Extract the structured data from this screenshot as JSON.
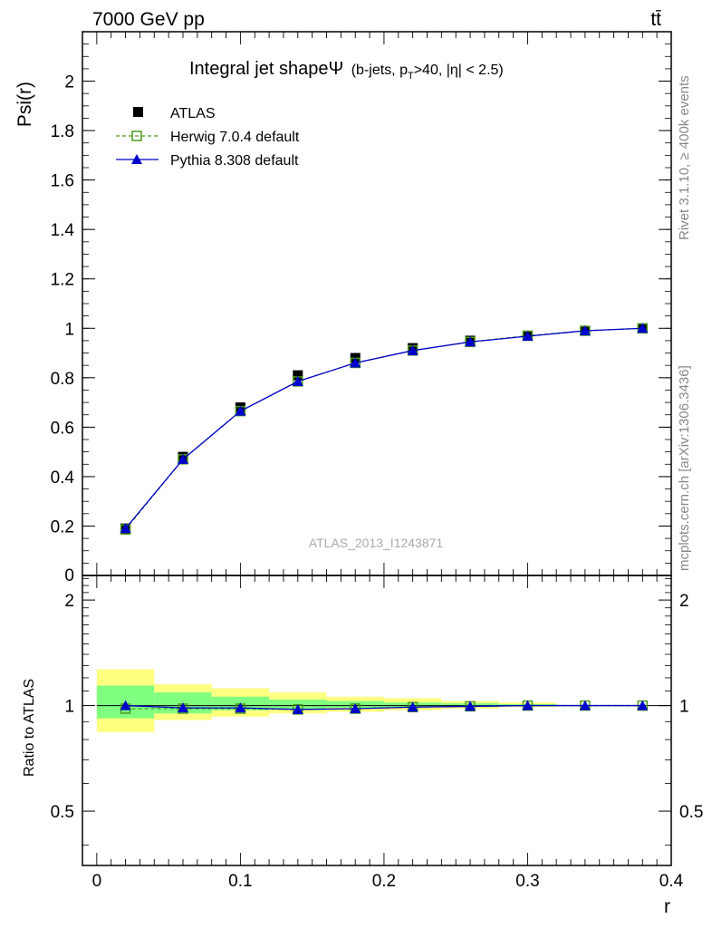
{
  "header": {
    "energy": "7000 GeV pp",
    "process": "tt̄"
  },
  "side_labels": {
    "rivet": "Rivet 3.1.10, ≥ 400k events",
    "mcplots": "mcplots.cern.ch [arXiv:1306.3436]"
  },
  "watermark": "ATLAS_2013_I1243871",
  "chart_data": [
    {
      "type": "line",
      "title_main": "Integral jet shapeΨ",
      "title_sub_a": "(b-jets, p",
      "title_sub_sub": "T",
      "title_sub_b": ">40, |η| < 2.5)",
      "ylabel": "Psi(r)",
      "xlim": [
        -0.01,
        0.4
      ],
      "ylim": [
        0,
        2.2
      ],
      "yticks": [
        0.2,
        0.4,
        0.6,
        0.8,
        1,
        1.2,
        1.4,
        1.6,
        1.8,
        2
      ],
      "ytick_labels": [
        "0.2",
        "0.4",
        "0.6",
        "0.8",
        "1",
        "1.2",
        "1.4",
        "1.6",
        "1.8",
        "2"
      ],
      "y_zero_label": "0",
      "legend_position": "top-left",
      "series": [
        {
          "name": "ATLAS",
          "marker": "filled-square",
          "color": "#000000",
          "x": [
            0.02,
            0.06,
            0.1,
            0.14,
            0.18,
            0.22,
            0.26,
            0.3,
            0.34,
            0.38
          ],
          "y": [
            0.19,
            0.48,
            0.68,
            0.81,
            0.88,
            0.92,
            0.95,
            0.97,
            0.99,
            1.0
          ]
        },
        {
          "name": "Herwig 7.0.4 default",
          "marker": "open-square",
          "line": "dashed",
          "color": "#4a9a1a",
          "x": [
            0.02,
            0.06,
            0.1,
            0.14,
            0.18,
            0.22,
            0.26,
            0.3,
            0.34,
            0.38
          ],
          "y": [
            0.186,
            0.47,
            0.665,
            0.785,
            0.86,
            0.91,
            0.945,
            0.97,
            0.99,
            1.0
          ]
        },
        {
          "name": "Pythia 8.308 default",
          "marker": "filled-triangle",
          "line": "solid",
          "color": "#0000cc",
          "x": [
            0.02,
            0.06,
            0.1,
            0.14,
            0.18,
            0.22,
            0.26,
            0.3,
            0.34,
            0.38
          ],
          "y": [
            0.19,
            0.47,
            0.665,
            0.785,
            0.86,
            0.91,
            0.945,
            0.968,
            0.99,
            1.0
          ]
        }
      ]
    },
    {
      "type": "line",
      "ylabel": "Ratio to ATLAS",
      "xlabel": "r",
      "xlim": [
        -0.01,
        0.4
      ],
      "ylim": [
        0.35,
        2.35
      ],
      "yticks": [
        0.5,
        1,
        2
      ],
      "ytick_labels": [
        "0.5",
        "1",
        "2"
      ],
      "xticks": [
        0,
        0.1,
        0.2,
        0.3,
        0.4
      ],
      "xtick_labels": [
        "0",
        "0.1",
        "0.2",
        "0.3",
        "0.4"
      ],
      "bands": {
        "x_edges": [
          0,
          0.04,
          0.08,
          0.12,
          0.16,
          0.2,
          0.24,
          0.28,
          0.32,
          0.36,
          0.4
        ],
        "yellow_lo": [
          0.84,
          0.91,
          0.93,
          0.95,
          0.96,
          0.97,
          0.98,
          0.99,
          1.0,
          1.0
        ],
        "yellow_hi": [
          1.27,
          1.15,
          1.12,
          1.09,
          1.06,
          1.05,
          1.03,
          1.02,
          1.0,
          1.0
        ],
        "green_lo": [
          0.92,
          0.95,
          0.97,
          0.98,
          0.985,
          0.99,
          0.99,
          0.995,
          1.0,
          1.0
        ],
        "green_hi": [
          1.14,
          1.09,
          1.06,
          1.04,
          1.03,
          1.02,
          1.015,
          1.01,
          1.0,
          1.0
        ],
        "yellow_color": "#ffff80",
        "green_color": "#80ff80"
      },
      "series": [
        {
          "name": "Herwig 7.0.4 default",
          "marker": "open-square",
          "line": "dashed",
          "color": "#4a9a1a",
          "x": [
            0.02,
            0.06,
            0.1,
            0.14,
            0.18,
            0.22,
            0.26,
            0.3,
            0.34,
            0.38
          ],
          "y": [
            0.98,
            0.98,
            0.98,
            0.975,
            0.98,
            0.99,
            0.995,
            1.0,
            1.0,
            1.0
          ]
        },
        {
          "name": "Pythia 8.308 default",
          "marker": "filled-triangle",
          "line": "solid",
          "color": "#0000cc",
          "x": [
            0.02,
            0.06,
            0.1,
            0.14,
            0.18,
            0.22,
            0.26,
            0.3,
            0.34,
            0.38
          ],
          "y": [
            1.0,
            0.985,
            0.985,
            0.975,
            0.98,
            0.99,
            0.995,
            1.0,
            1.0,
            1.0
          ]
        }
      ]
    }
  ]
}
